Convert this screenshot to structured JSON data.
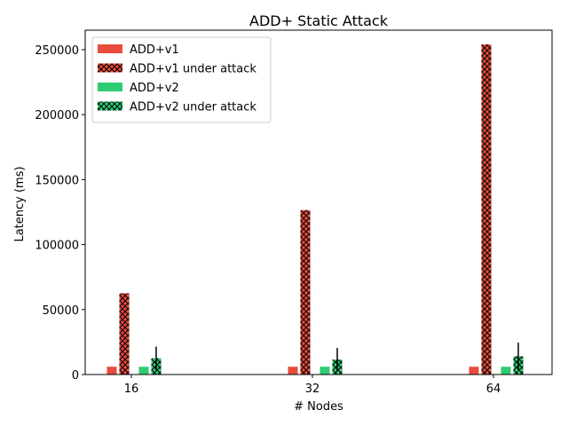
{
  "chart_data": {
    "type": "bar",
    "title": "ADD+ Static Attack",
    "xlabel": "# Nodes",
    "ylabel": "Latency (ms)",
    "categories": [
      "16",
      "32",
      "64"
    ],
    "ylim": [
      0,
      265000
    ],
    "yticks": [
      0,
      50000,
      100000,
      150000,
      200000,
      250000
    ],
    "grid": false,
    "legend_position": "top-left",
    "series": [
      {
        "name": "ADD+v1",
        "values": [
          6000,
          6000,
          6000
        ],
        "color": "#e74c3c",
        "hatch": false,
        "err": [
          0,
          0,
          0
        ]
      },
      {
        "name": "ADD+v1 under attack",
        "values": [
          62500,
          126500,
          254000
        ],
        "color": "#e74c3c",
        "hatch": true,
        "err": [
          0,
          0,
          0
        ]
      },
      {
        "name": "ADD+v2",
        "values": [
          6000,
          6000,
          6000
        ],
        "color": "#2ecc71",
        "hatch": false,
        "err": [
          0,
          0,
          0
        ]
      },
      {
        "name": "ADD+v2 under attack",
        "values": [
          12500,
          11500,
          14000
        ],
        "color": "#2ecc71",
        "hatch": true,
        "err": [
          9000,
          9000,
          10500
        ]
      }
    ]
  }
}
